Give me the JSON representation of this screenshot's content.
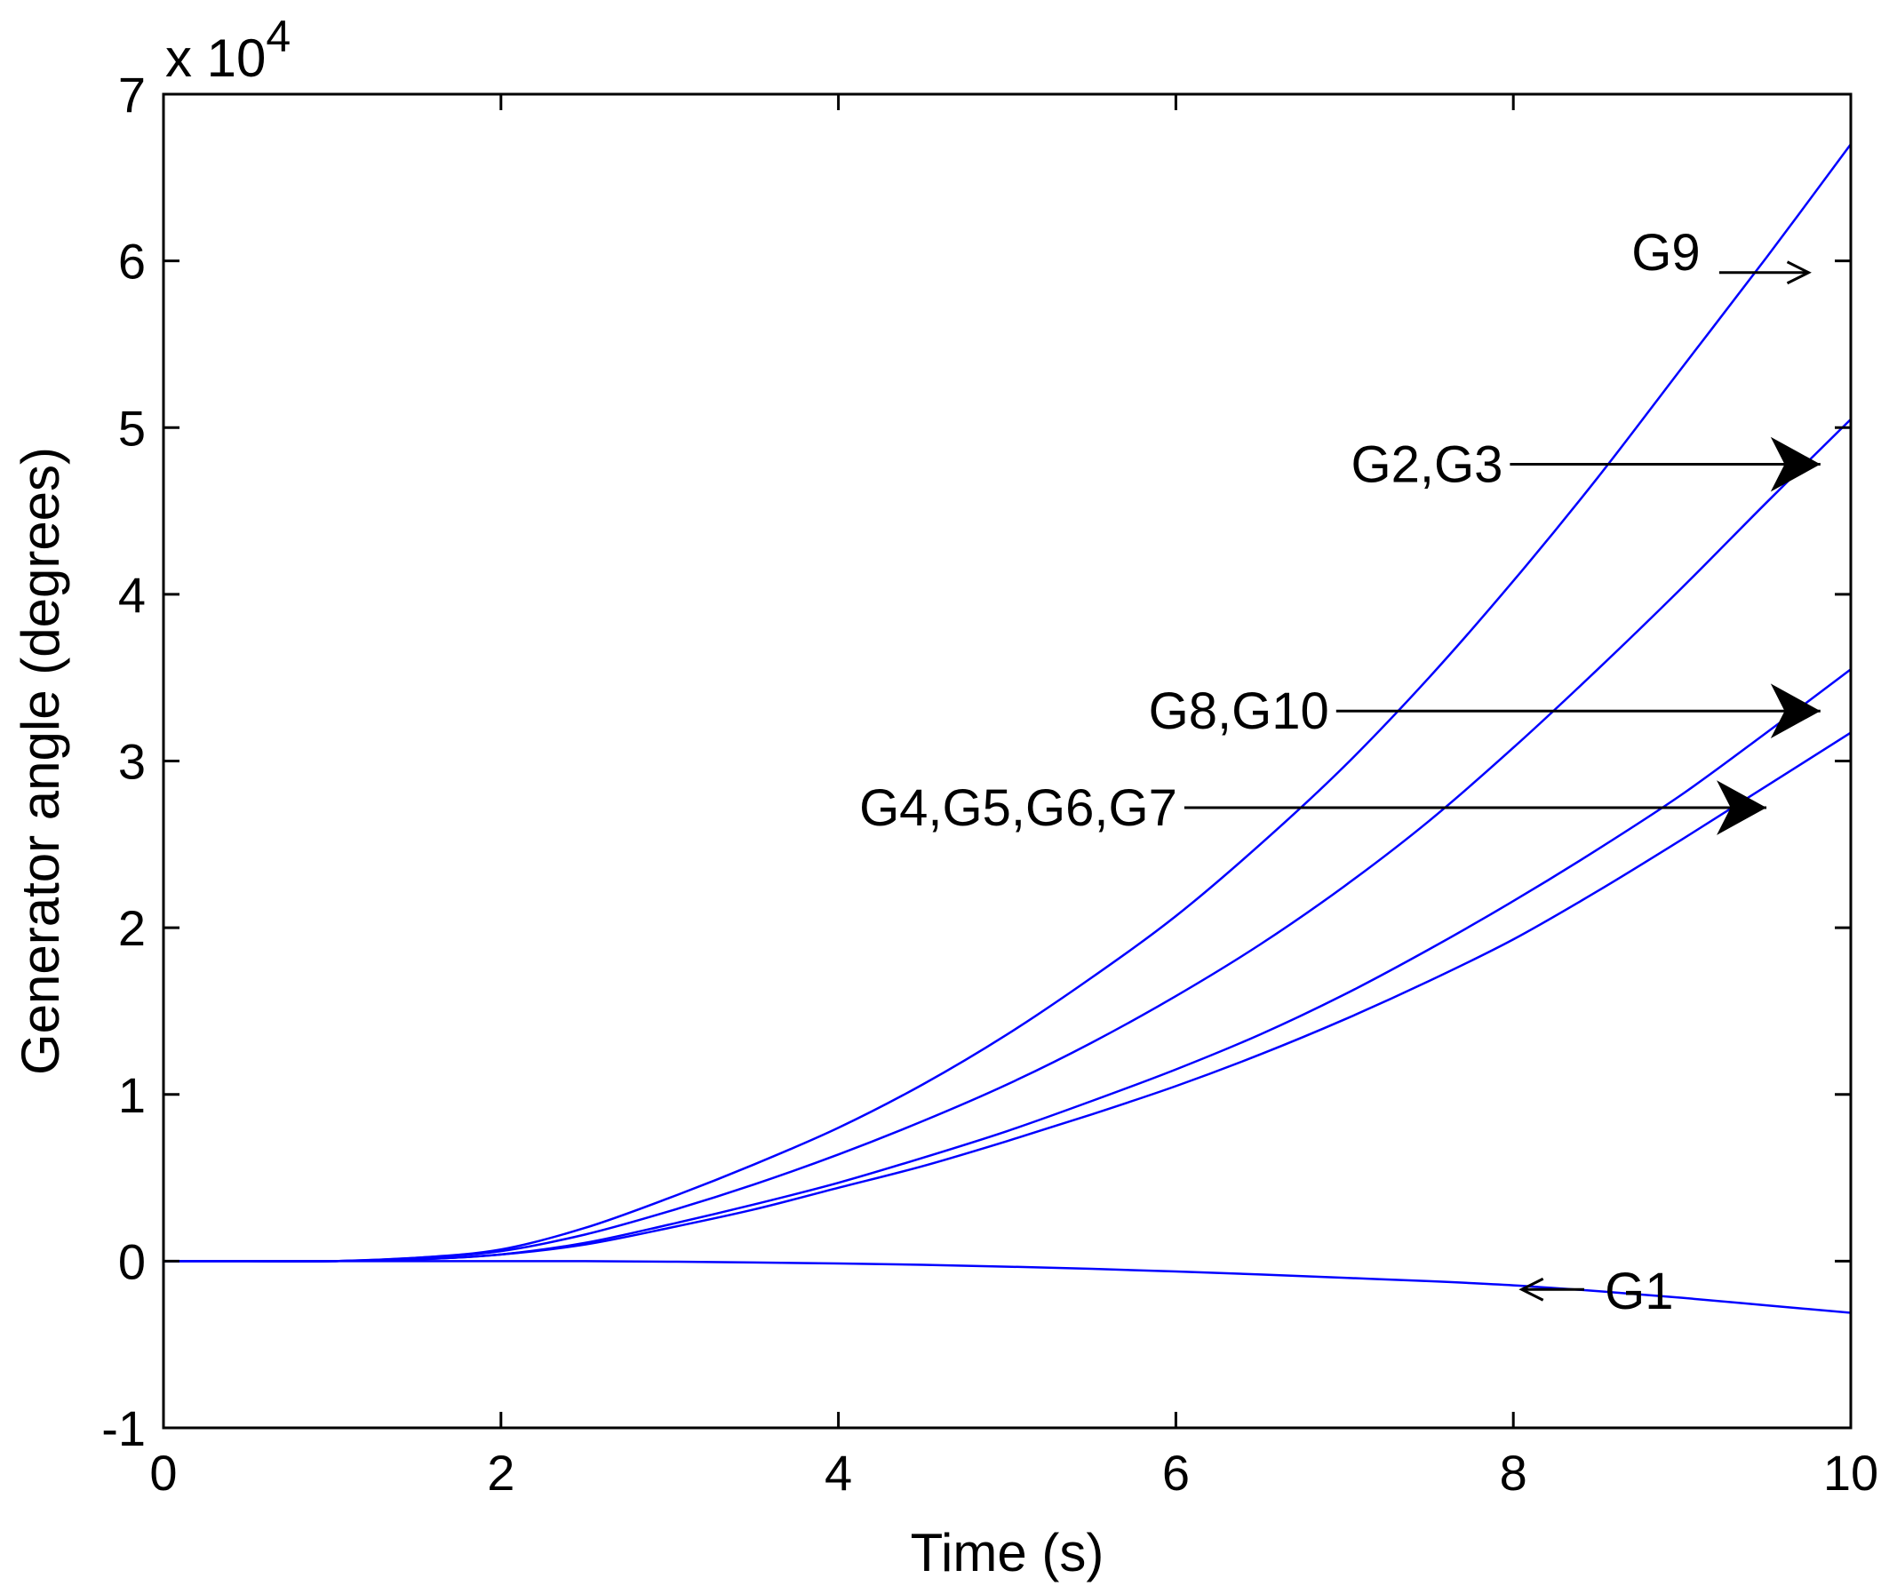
{
  "chart_data": {
    "type": "line",
    "title": "",
    "xlabel": "Time (s)",
    "ylabel": "Generator angle (degrees)",
    "xlim": [
      0,
      10
    ],
    "ylim": [
      -1,
      7
    ],
    "y_multiplier_prefix": "x 10",
    "y_multiplier_exponent": "4",
    "y_scale": 10000,
    "grid": false,
    "line_color": "#0000ff",
    "x_ticks": [
      0,
      2,
      4,
      6,
      8,
      10
    ],
    "x_tick_labels": [
      "0",
      "2",
      "4",
      "6",
      "8",
      "10"
    ],
    "y_ticks": [
      -1,
      0,
      1,
      2,
      3,
      4,
      5,
      6,
      7
    ],
    "y_tick_labels": [
      "-1",
      "0",
      "1",
      "2",
      "3",
      "4",
      "5",
      "6",
      "7"
    ],
    "x": [
      0,
      0.5,
      1,
      1.5,
      2,
      2.5,
      3,
      3.5,
      4,
      4.5,
      5,
      5.5,
      6,
      6.5,
      7,
      7.5,
      8,
      8.5,
      9,
      9.5,
      10
    ],
    "series": [
      {
        "name": "G9",
        "values": [
          0,
          0,
          0,
          0.02,
          0.07,
          0.2,
          0.38,
          0.58,
          0.8,
          1.06,
          1.36,
          1.7,
          2.07,
          2.5,
          2.97,
          3.5,
          4.08,
          4.7,
          5.36,
          6.02,
          6.7
        ]
      },
      {
        "name": "G2,G3",
        "values": [
          0,
          0,
          0,
          0.02,
          0.06,
          0.16,
          0.3,
          0.46,
          0.64,
          0.84,
          1.06,
          1.31,
          1.59,
          1.9,
          2.25,
          2.64,
          3.08,
          3.55,
          4.04,
          4.55,
          5.05
        ]
      },
      {
        "name": "G8,G10",
        "values": [
          0,
          0,
          0,
          0.01,
          0.04,
          0.11,
          0.22,
          0.34,
          0.47,
          0.62,
          0.78,
          0.96,
          1.15,
          1.36,
          1.6,
          1.87,
          2.16,
          2.47,
          2.8,
          3.17,
          3.55
        ]
      },
      {
        "name": "G4,G5,G6,G7",
        "values": [
          0,
          0,
          0,
          0.01,
          0.04,
          0.1,
          0.2,
          0.31,
          0.44,
          0.57,
          0.72,
          0.88,
          1.05,
          1.24,
          1.45,
          1.68,
          1.93,
          2.22,
          2.53,
          2.85,
          3.17
        ]
      },
      {
        "name": "G1",
        "values": [
          0,
          0,
          0,
          0,
          0,
          0,
          -0.003,
          -0.008,
          -0.014,
          -0.022,
          -0.033,
          -0.046,
          -0.062,
          -0.08,
          -0.1,
          -0.12,
          -0.145,
          -0.18,
          -0.22,
          -0.265,
          -0.31
        ]
      }
    ],
    "annotations": [
      {
        "text": "G9",
        "series": "G9"
      },
      {
        "text": "G2,G3",
        "series": "G2,G3"
      },
      {
        "text": "G8,G10",
        "series": "G8,G10"
      },
      {
        "text": "G4,G5,G6,G7",
        "series": "G4,G5,G6,G7"
      },
      {
        "text": "G1",
        "series": "G1"
      }
    ]
  }
}
